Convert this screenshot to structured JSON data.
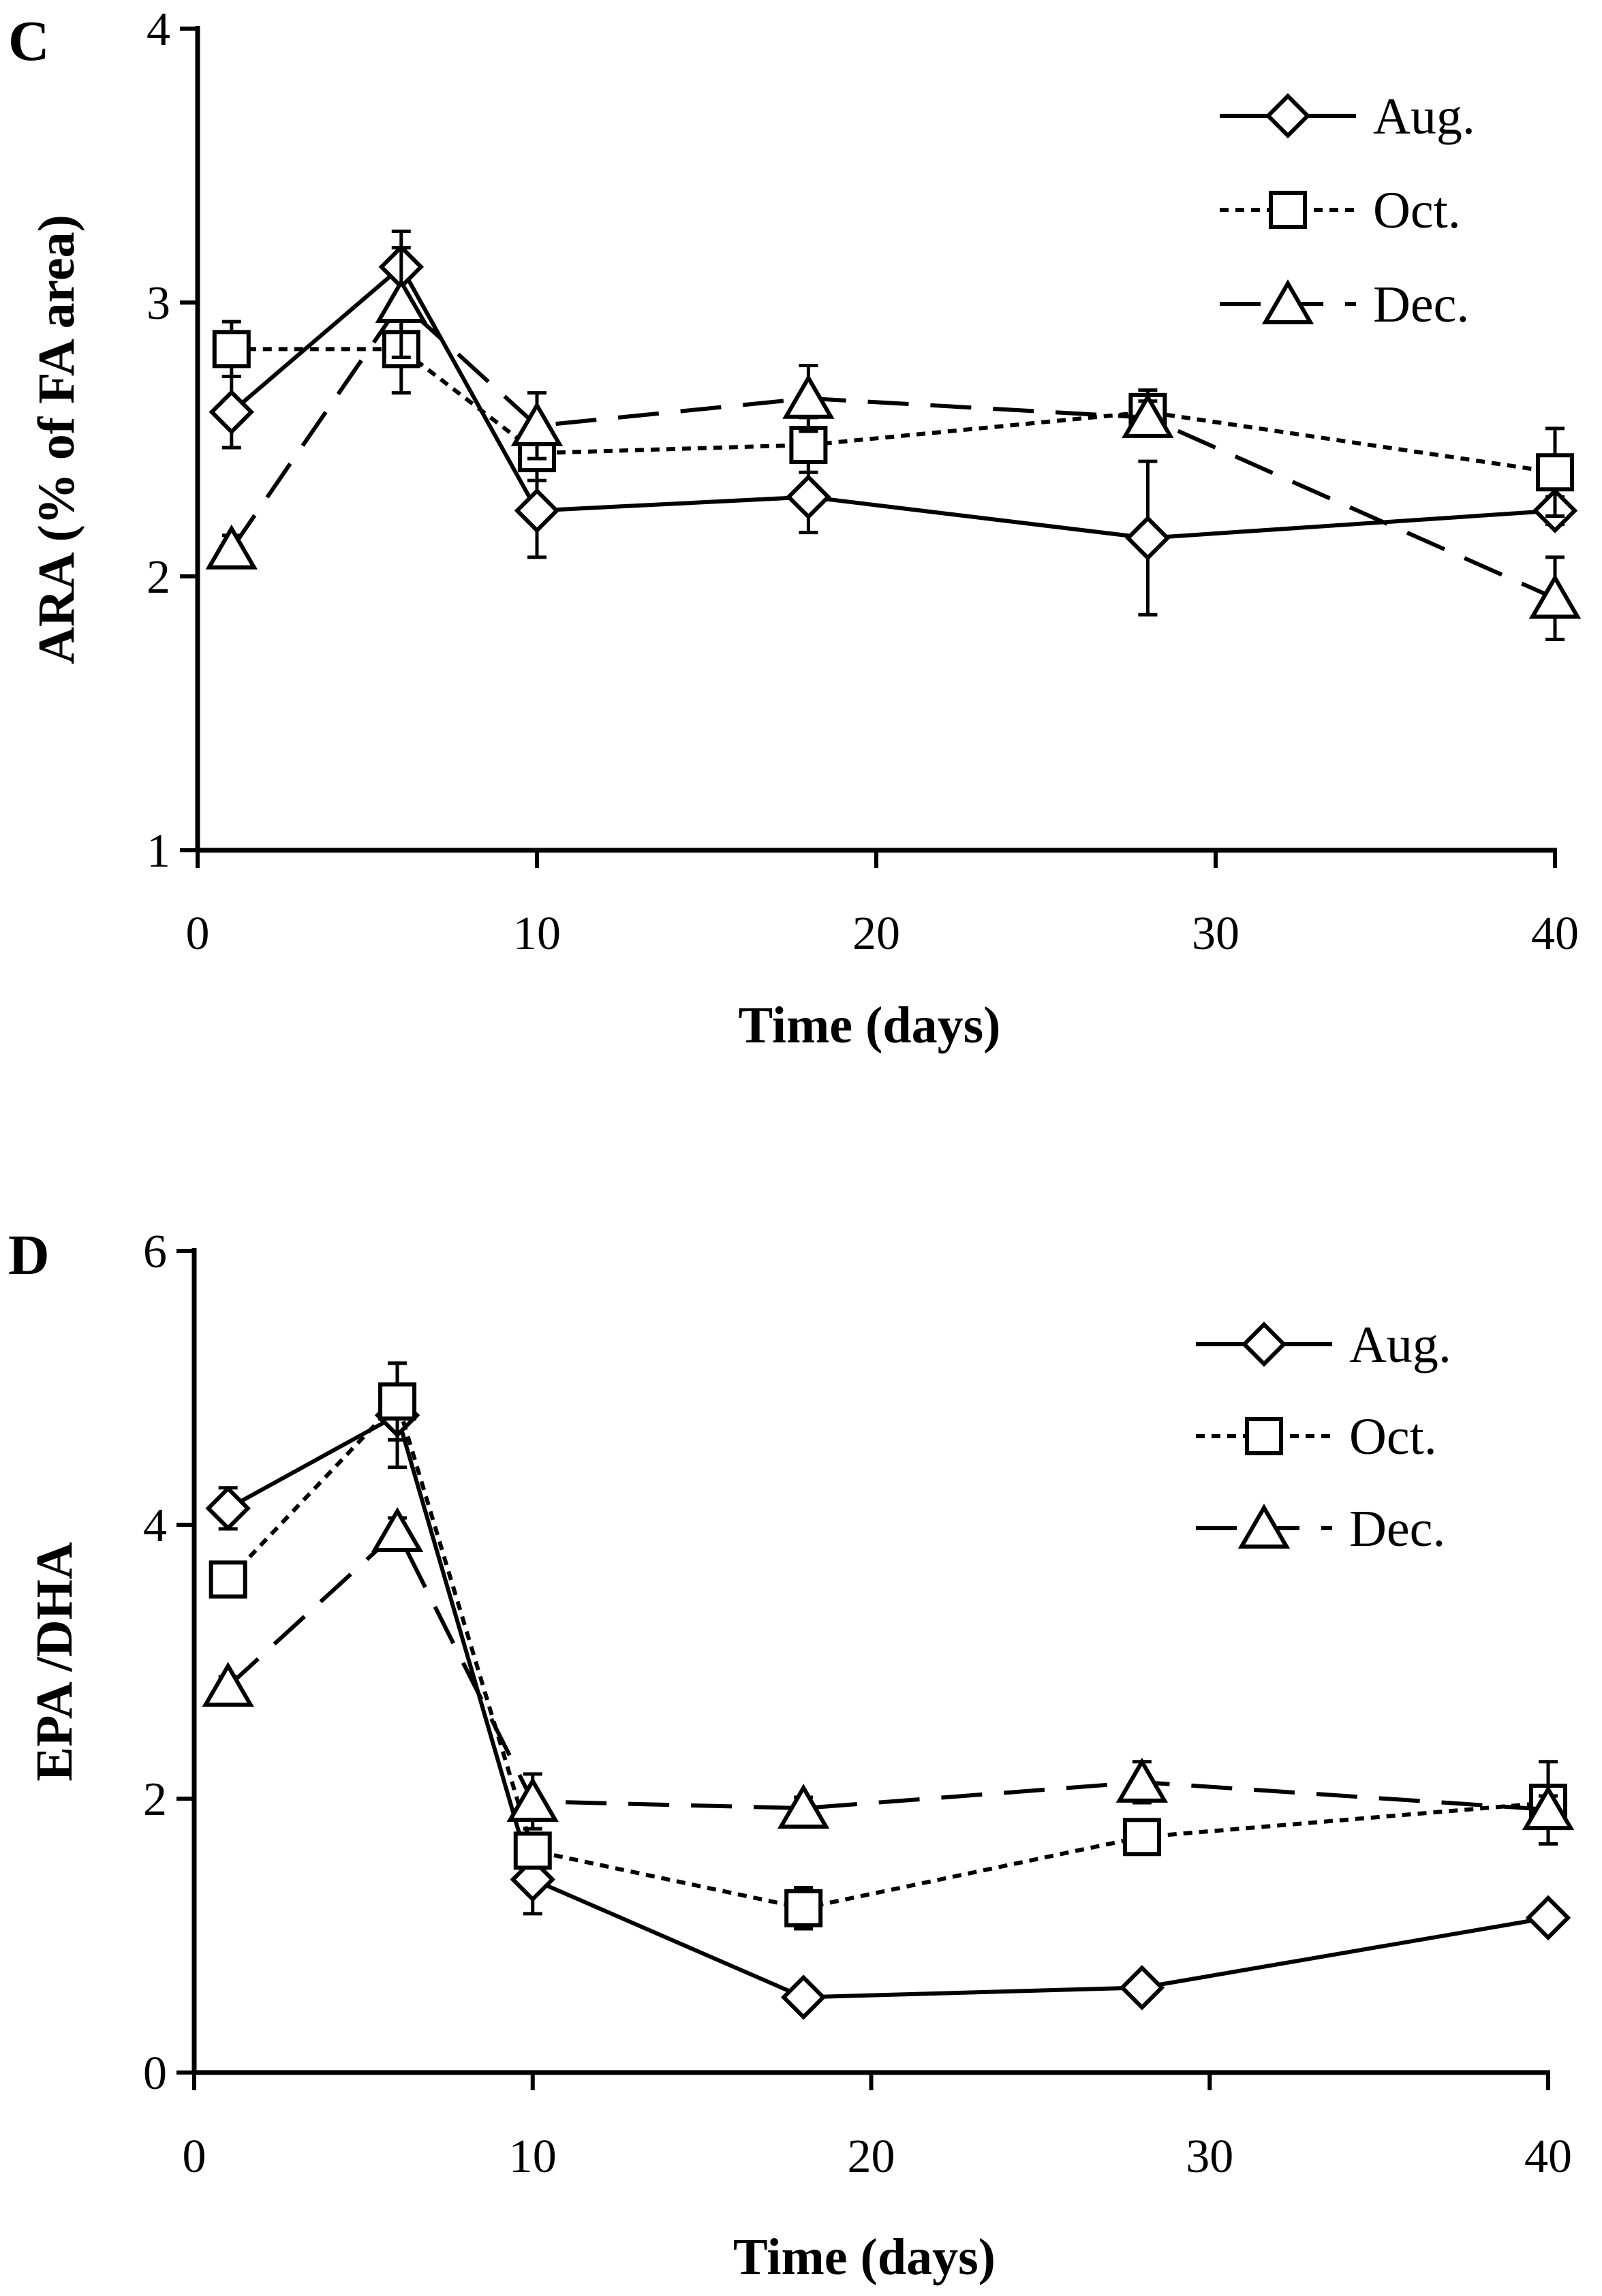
{
  "chart_data": [
    {
      "type": "line",
      "panel_label": "C",
      "xlabel": "Time (days)",
      "ylabel": "ARA (% of FA area)",
      "xlim": [
        0,
        40
      ],
      "ylim": [
        1,
        4
      ],
      "x_ticks": [
        0,
        10,
        20,
        30,
        40
      ],
      "y_ticks": [
        1,
        2,
        3,
        4
      ],
      "legend_position": "top-right",
      "grid": false,
      "series": [
        {
          "name": "Aug.",
          "marker": "diamond",
          "dash": "solid",
          "x": [
            1,
            6,
            10,
            18,
            28,
            40
          ],
          "y": [
            2.6,
            3.13,
            2.24,
            2.29,
            2.14,
            2.24
          ],
          "err": [
            0.13,
            0.13,
            0.17,
            0.13,
            0.28,
            0.05
          ]
        },
        {
          "name": "Oct.",
          "marker": "square",
          "dash": "dotted",
          "x": [
            1,
            6,
            10,
            18,
            28,
            40
          ],
          "y": [
            2.83,
            2.83,
            2.45,
            2.48,
            2.6,
            2.38
          ],
          "err": [
            0.1,
            0.16,
            0.1,
            0.1,
            0.08,
            0.16
          ]
        },
        {
          "name": "Dec.",
          "marker": "triangle",
          "dash": "dashed",
          "x": [
            1,
            6,
            10,
            18,
            28,
            40
          ],
          "y": [
            2.1,
            3.0,
            2.55,
            2.65,
            2.58,
            1.92
          ],
          "err": [
            0.05,
            0.2,
            0.12,
            0.12,
            0.06,
            0.15
          ]
        }
      ]
    },
    {
      "type": "line",
      "panel_label": "D",
      "xlabel": "Time (days)",
      "ylabel": "EPA /DHA",
      "xlim": [
        0,
        40
      ],
      "ylim": [
        0,
        6
      ],
      "x_ticks": [
        0,
        10,
        20,
        30,
        40
      ],
      "y_ticks": [
        0,
        2,
        4,
        6
      ],
      "legend_position": "top-right",
      "grid": false,
      "series": [
        {
          "name": "Aug.",
          "marker": "diamond",
          "dash": "solid",
          "x": [
            1,
            6,
            10,
            18,
            28,
            40
          ],
          "y": [
            4.12,
            4.8,
            1.41,
            0.55,
            0.62,
            1.13
          ],
          "err": [
            0.15,
            0.38,
            0.25,
            0.05,
            0.05,
            0.05
          ]
        },
        {
          "name": "Oct.",
          "marker": "square",
          "dash": "dotted",
          "x": [
            1,
            6,
            10,
            18,
            28,
            40
          ],
          "y": [
            3.6,
            4.9,
            1.62,
            1.2,
            1.72,
            1.97
          ],
          "err": [
            0.1,
            0.28,
            0.1,
            0.15,
            0.08,
            0.3
          ]
        },
        {
          "name": "Dec.",
          "marker": "triangle",
          "dash": "dashed",
          "x": [
            1,
            6,
            10,
            18,
            28,
            40
          ],
          "y": [
            2.82,
            3.95,
            1.98,
            1.93,
            2.12,
            1.92
          ],
          "err": [
            0.07,
            0.1,
            0.2,
            0.08,
            0.15,
            0.1
          ]
        }
      ]
    }
  ]
}
